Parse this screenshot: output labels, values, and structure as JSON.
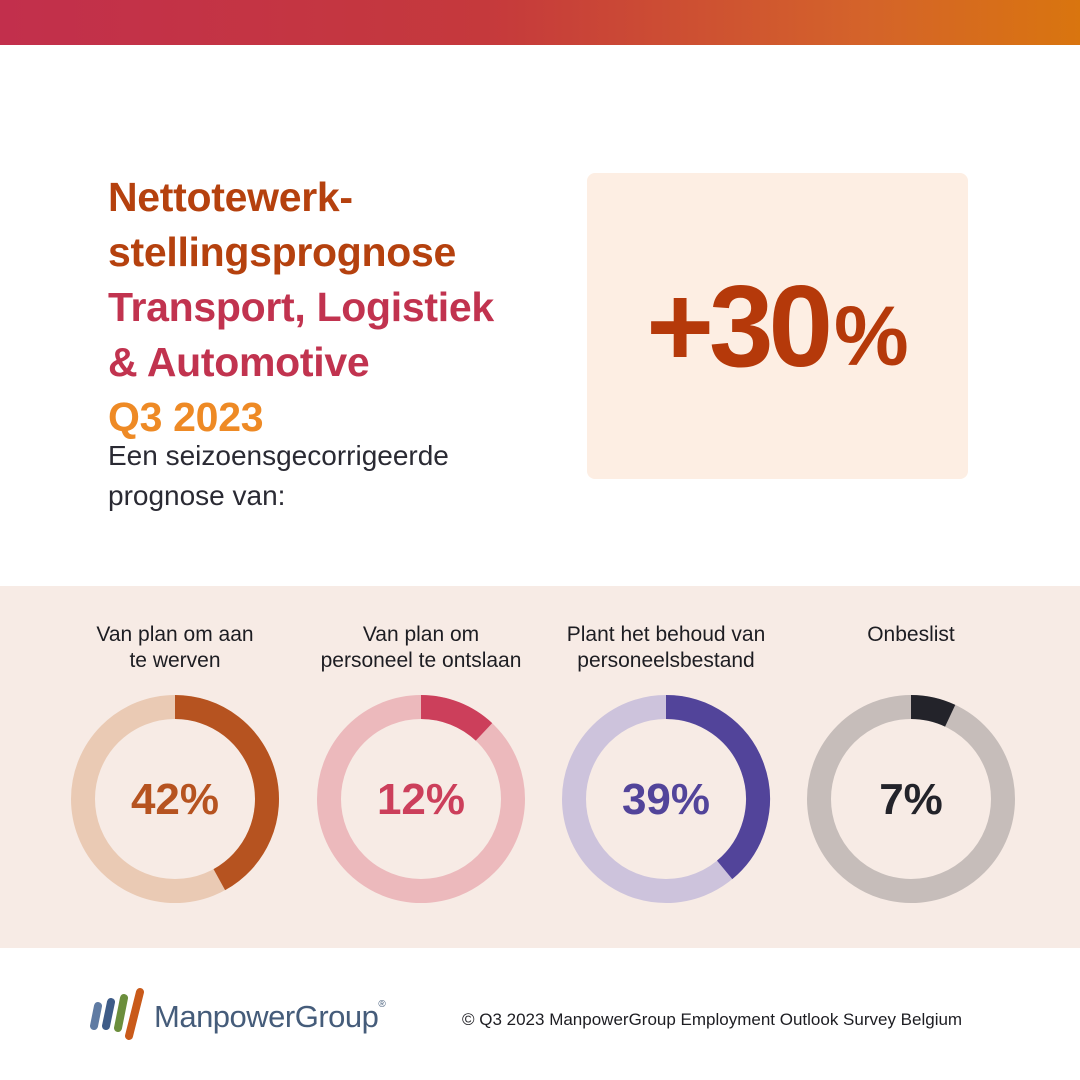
{
  "headline": {
    "line1": "Nettotewerk-",
    "line2": "stellingsprognose",
    "line3": "Transport, Logistiek",
    "line4": "& Automotive",
    "line5": "Q3 2023"
  },
  "subtitle": {
    "line1": "Een seizoensgecorrigeerde",
    "line2": "prognose van:"
  },
  "forecast": {
    "value": "+30",
    "unit": "%"
  },
  "chart_data": [
    {
      "type": "pie",
      "label_lines": [
        "Van plan om aan",
        "te werven"
      ],
      "value": 42,
      "display": "42%",
      "color": "#b65320",
      "track_color": "#eacab4"
    },
    {
      "type": "pie",
      "label_lines": [
        "Van plan om",
        "personeel te ontslaan"
      ],
      "value": 12,
      "display": "12%",
      "color": "#cc3f5b",
      "track_color": "#ecb9bc"
    },
    {
      "type": "pie",
      "label_lines": [
        "Plant het behoud van",
        "personeelsbestand"
      ],
      "value": 39,
      "display": "39%",
      "color": "#52449a",
      "track_color": "#cdc3dc"
    },
    {
      "type": "pie",
      "label_lines": [
        "Onbeslist"
      ],
      "value": 7,
      "display": "7%",
      "color": "#23232a",
      "track_color": "#c6bdba"
    }
  ],
  "footer": {
    "brand": "ManpowerGroup",
    "brand_mark": "®",
    "copyright": "© Q3 2023 ManpowerGroup Employment Outlook Survey Belgium"
  },
  "colors": {
    "top_bar_start": "#c22f4c",
    "top_bar_end": "#d9750f",
    "headline_primary": "#b5410e",
    "headline_secondary": "#c1334f",
    "headline_accent": "#ee8a25",
    "forecast_box": "#fdeee3",
    "panel_bg": "#f7ebe5"
  }
}
